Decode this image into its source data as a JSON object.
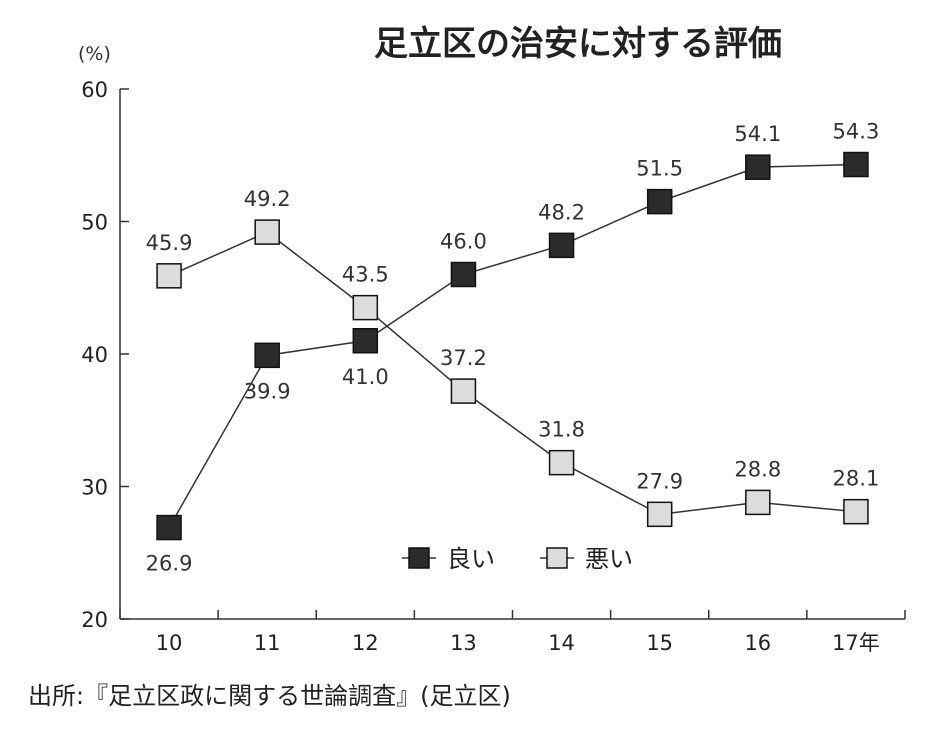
{
  "source": "出所:『足立区政に関する世論調査』(足立区)",
  "colors": {
    "good": "#2b2b2b",
    "bad": "#dcdcdc",
    "axis": "#333333"
  },
  "chart_data": {
    "type": "line",
    "title": "足立区の治安に対する評価",
    "ylabel": "(%)",
    "xlabel": "",
    "x": [
      "10",
      "11",
      "12",
      "13",
      "14",
      "15",
      "16",
      "17年"
    ],
    "ylim": [
      20,
      60
    ],
    "yticks": [
      "20",
      "30",
      "40",
      "50",
      "60"
    ],
    "grid": false,
    "legend_position": "bottom-center",
    "series": [
      {
        "name": "良い",
        "values": [
          26.9,
          39.9,
          41.0,
          46.0,
          48.2,
          51.5,
          54.1,
          54.3
        ],
        "labels": [
          "26.9",
          "39.9",
          "41.0",
          "46.0",
          "48.2",
          "51.5",
          "54.1",
          "54.3"
        ]
      },
      {
        "name": "悪い",
        "values": [
          45.9,
          49.2,
          43.5,
          37.2,
          31.8,
          27.9,
          28.8,
          28.1
        ],
        "labels": [
          "45.9",
          "49.2",
          "43.5",
          "37.2",
          "31.8",
          "27.9",
          "28.8",
          "28.1"
        ]
      }
    ]
  }
}
